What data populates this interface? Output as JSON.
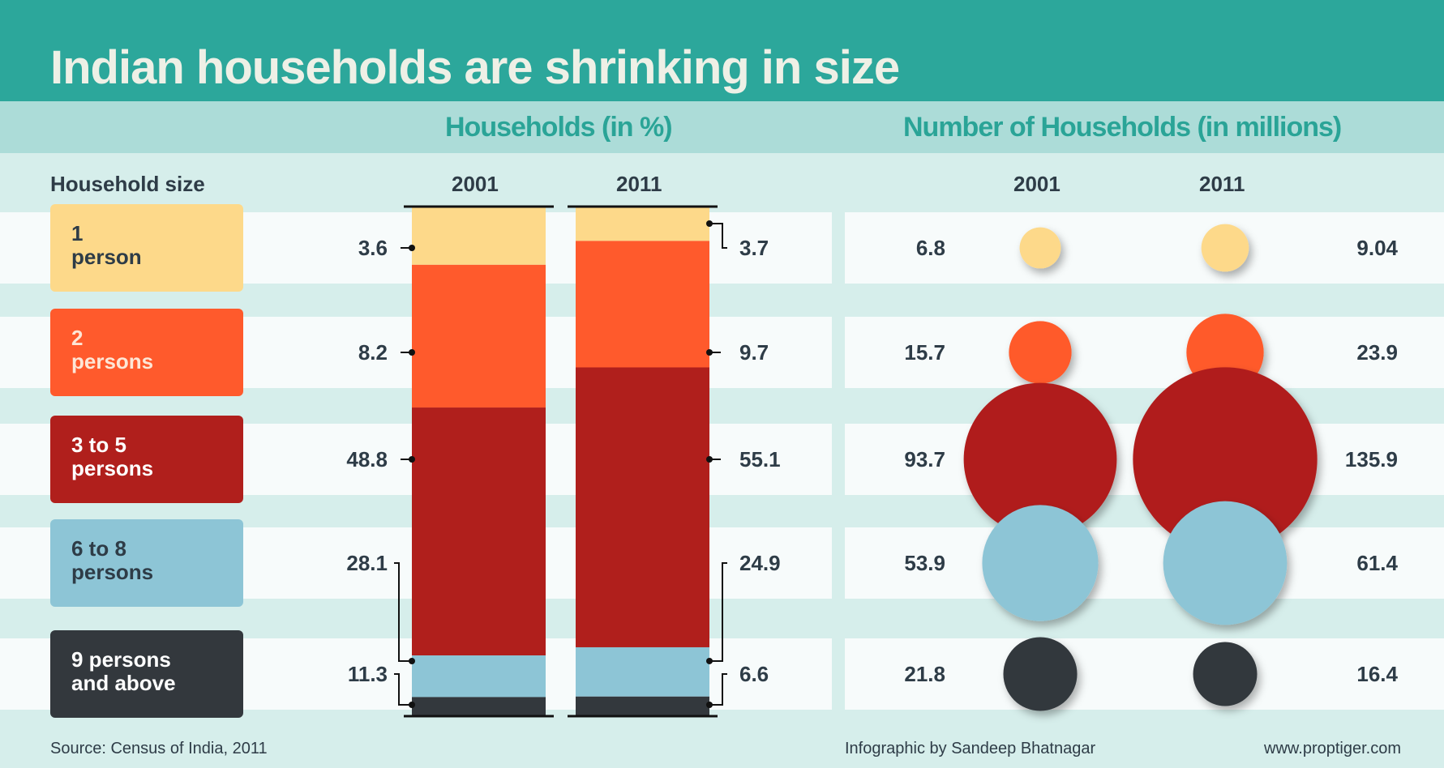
{
  "title": "Indian households are shrinking in size",
  "section_pct": "Households (in %)",
  "section_num": "Number of Households (in millions)",
  "household_size_label": "Household size",
  "years": [
    "2001",
    "2011"
  ],
  "categories": [
    {
      "line1": "1",
      "line2": "person",
      "color": "#fdd98a",
      "text_color": "#2e3c47"
    },
    {
      "line1": "2",
      "line2": "persons",
      "color": "#ff5a2c",
      "text_color": "#fde6d6"
    },
    {
      "line1": "3 to 5",
      "line2": "persons",
      "color": "#b01f1c",
      "text_color": "#ffffff"
    },
    {
      "line1": "6 to 8",
      "line2": "persons",
      "color": "#8dc5d6",
      "text_color": "#2e3c47"
    },
    {
      "line1": "9 persons",
      "line2": "and above",
      "color": "#33383d",
      "text_color": "#ffffff"
    }
  ],
  "chart_data": [
    {
      "type": "bar",
      "title": "Households (in %)",
      "categories": [
        "1 person",
        "2 persons",
        "3 to 5 persons",
        "6 to 8 persons",
        "9 persons and above"
      ],
      "series": [
        {
          "name": "2001",
          "values": [
            3.6,
            8.2,
            48.8,
            28.1,
            11.3
          ],
          "labels": [
            "3.6",
            "8.2",
            "48.8",
            "28.1",
            "11.3"
          ]
        },
        {
          "name": "2011",
          "values": [
            3.7,
            9.7,
            55.1,
            24.9,
            6.6
          ],
          "labels": [
            "3.7",
            "9.7",
            "55.1",
            "24.9",
            "6.6"
          ]
        }
      ],
      "stacked": true,
      "ylim": [
        0,
        100
      ]
    },
    {
      "type": "bubble",
      "title": "Number of Households (in millions)",
      "categories": [
        "1 person",
        "2 persons",
        "3 to 5 persons",
        "6 to 8 persons",
        "9 persons and above"
      ],
      "series": [
        {
          "name": "2001",
          "values": [
            6.8,
            15.7,
            93.7,
            53.9,
            21.8
          ],
          "labels": [
            "6.8",
            "15.7",
            "93.7",
            "53.9",
            "21.8"
          ]
        },
        {
          "name": "2011",
          "values": [
            9.04,
            23.9,
            135.9,
            61.4,
            16.4
          ],
          "labels": [
            "9.04",
            "23.9",
            "135.9",
            "61.4",
            "16.4"
          ]
        }
      ]
    }
  ],
  "footer": {
    "source": "Source: Census of India, 2011",
    "credit": "Infographic by Sandeep Bhatnagar",
    "website": "www.proptiger.com"
  }
}
